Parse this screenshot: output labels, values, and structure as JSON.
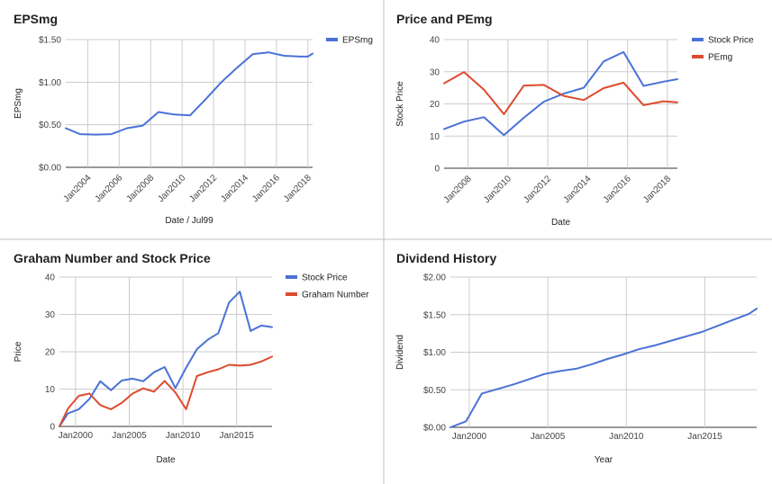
{
  "chart_data": [
    {
      "type": "line",
      "title": "EPSmg",
      "xlabel": "Date / Jul99",
      "ylabel": "EPSmg",
      "ylim": [
        0,
        1.5
      ],
      "xlim": [
        2002.6,
        2018.3
      ],
      "x_ticks": [
        2004,
        2006,
        2008,
        2010,
        2012,
        2014,
        2016,
        2018
      ],
      "x_tick_labels": [
        "Jan2004",
        "Jan2006",
        "Jan2008",
        "Jan2010",
        "Jan2012",
        "Jan2014",
        "Jan2016",
        "Jan2018"
      ],
      "x_ticks_rotated": true,
      "y_ticks": [
        0,
        0.5,
        1.0,
        1.5
      ],
      "y_tick_labels": [
        "$0.00",
        "$0.50",
        "$1.00",
        "$1.50"
      ],
      "grid": true,
      "legend_position": "right",
      "series": [
        {
          "name": "EPSmg",
          "color": "#4a72d6",
          "x": [
            2002.6,
            2003.5,
            2004.5,
            2005.5,
            2006.5,
            2007.5,
            2008.5,
            2009.5,
            2010.5,
            2011.5,
            2012.5,
            2013.5,
            2014.5,
            2015.5,
            2016.5,
            2017.5,
            2018.0,
            2018.3
          ],
          "values": [
            0.46,
            0.39,
            0.385,
            0.39,
            0.46,
            0.49,
            0.65,
            0.62,
            0.61,
            0.8,
            1.0,
            1.17,
            1.33,
            1.35,
            1.31,
            1.3,
            1.3,
            1.335
          ]
        }
      ]
    },
    {
      "type": "line",
      "title": "Price and PEmg",
      "xlabel": "Date",
      "ylabel": "Stock Price",
      "ylim": [
        0,
        40
      ],
      "xlim": [
        2006.8,
        2018.5
      ],
      "x_ticks": [
        2008,
        2010,
        2012,
        2014,
        2016,
        2018
      ],
      "x_tick_labels": [
        "Jan2008",
        "Jan2010",
        "Jan2012",
        "Jan2014",
        "Jan2016",
        "Jan2018"
      ],
      "x_ticks_rotated": true,
      "y_ticks": [
        0,
        10,
        20,
        30,
        40
      ],
      "y_tick_labels": [
        "0",
        "10",
        "20",
        "30",
        "40"
      ],
      "grid": true,
      "legend_position": "right",
      "series": [
        {
          "name": "Stock Price",
          "color": "#4a72d6",
          "x": [
            2006.8,
            2007.8,
            2008.8,
            2009.8,
            2010.8,
            2011.8,
            2012.8,
            2013.8,
            2014.8,
            2015.8,
            2016.8,
            2017.8,
            2018.5
          ],
          "values": [
            12.2,
            14.5,
            15.9,
            10.3,
            15.7,
            20.7,
            23.2,
            25.0,
            33.2,
            36.1,
            25.6,
            26.9,
            27.7
          ]
        },
        {
          "name": "PEmg",
          "color": "#dd4b2e",
          "x": [
            2006.8,
            2007.8,
            2008.8,
            2009.8,
            2010.8,
            2011.8,
            2012.8,
            2013.8,
            2014.8,
            2015.8,
            2016.8,
            2017.8,
            2018.5
          ],
          "values": [
            26.4,
            29.9,
            24.4,
            16.8,
            25.7,
            25.9,
            22.5,
            21.2,
            24.9,
            26.6,
            19.6,
            20.8,
            20.5
          ]
        }
      ]
    },
    {
      "type": "line",
      "title": "Graham Number and Stock Price",
      "xlabel": "Date",
      "ylabel": "Price",
      "ylim": [
        0,
        40
      ],
      "xlim": [
        1998.5,
        2018.3
      ],
      "x_ticks": [
        2000,
        2005,
        2010,
        2015
      ],
      "x_tick_labels": [
        "Jan2000",
        "Jan2005",
        "Jan2010",
        "Jan2015"
      ],
      "x_ticks_rotated": false,
      "y_ticks": [
        0,
        10,
        20,
        30,
        40
      ],
      "y_tick_labels": [
        "0",
        "10",
        "20",
        "30",
        "40"
      ],
      "grid": true,
      "legend_position": "right",
      "series": [
        {
          "name": "Stock Price",
          "color": "#4a72d6",
          "x": [
            1998.5,
            1999.3,
            2000.3,
            2001.3,
            2002.3,
            2003.3,
            2004.3,
            2005.3,
            2006.3,
            2007.3,
            2008.3,
            2009.3,
            2010.3,
            2011.3,
            2012.3,
            2013.3,
            2014.3,
            2015.3,
            2016.3,
            2017.3,
            2018.3
          ],
          "values": [
            0,
            3.5,
            4.6,
            7.4,
            12.1,
            9.7,
            12.3,
            12.8,
            12.1,
            14.5,
            15.9,
            10.3,
            15.7,
            20.7,
            23.2,
            25.0,
            33.2,
            36.1,
            25.6,
            27.0,
            26.6
          ]
        },
        {
          "name": "Graham Number",
          "color": "#dd4b2e",
          "x": [
            1998.5,
            1999.3,
            2000.3,
            2001.3,
            2002.3,
            2003.3,
            2004.3,
            2005.3,
            2006.3,
            2007.3,
            2008.3,
            2009.3,
            2010.3,
            2011.3,
            2012.3,
            2013.3,
            2014.3,
            2015.3,
            2016.3,
            2017.3,
            2018.3
          ],
          "values": [
            0,
            4.8,
            8.2,
            8.8,
            5.7,
            4.6,
            6.3,
            8.8,
            10.2,
            9.3,
            12.2,
            9.1,
            4.6,
            13.5,
            14.5,
            15.3,
            16.5,
            16.3,
            16.5,
            17.4,
            18.7
          ]
        }
      ]
    },
    {
      "type": "line",
      "title": "Dividend History",
      "xlabel": "Year",
      "ylabel": "Dividend",
      "ylim": [
        0,
        2.0
      ],
      "xlim": [
        1998.8,
        2018.3
      ],
      "x_ticks": [
        2000,
        2005,
        2010,
        2015
      ],
      "x_tick_labels": [
        "Jan2000",
        "Jan2005",
        "Jan2010",
        "Jan2015"
      ],
      "x_ticks_rotated": false,
      "y_ticks": [
        0,
        0.5,
        1.0,
        1.5,
        2.0
      ],
      "y_tick_labels": [
        "$0.00",
        "$0.50",
        "$1.00",
        "$1.50",
        "$2.00"
      ],
      "grid": true,
      "legend_position": "none",
      "series": [
        {
          "name": "",
          "color": "#4a72d6",
          "x": [
            1998.8,
            1999.8,
            2000.8,
            2001.8,
            2002.8,
            2003.8,
            2004.8,
            2005.8,
            2006.8,
            2007.8,
            2008.8,
            2009.8,
            2010.8,
            2011.8,
            2012.8,
            2013.8,
            2014.8,
            2015.8,
            2016.8,
            2017.8,
            2018.3
          ],
          "values": [
            0,
            0.08,
            0.45,
            0.51,
            0.57,
            0.64,
            0.71,
            0.75,
            0.78,
            0.84,
            0.91,
            0.97,
            1.04,
            1.09,
            1.15,
            1.21,
            1.27,
            1.35,
            1.43,
            1.51,
            1.58
          ]
        }
      ]
    }
  ]
}
